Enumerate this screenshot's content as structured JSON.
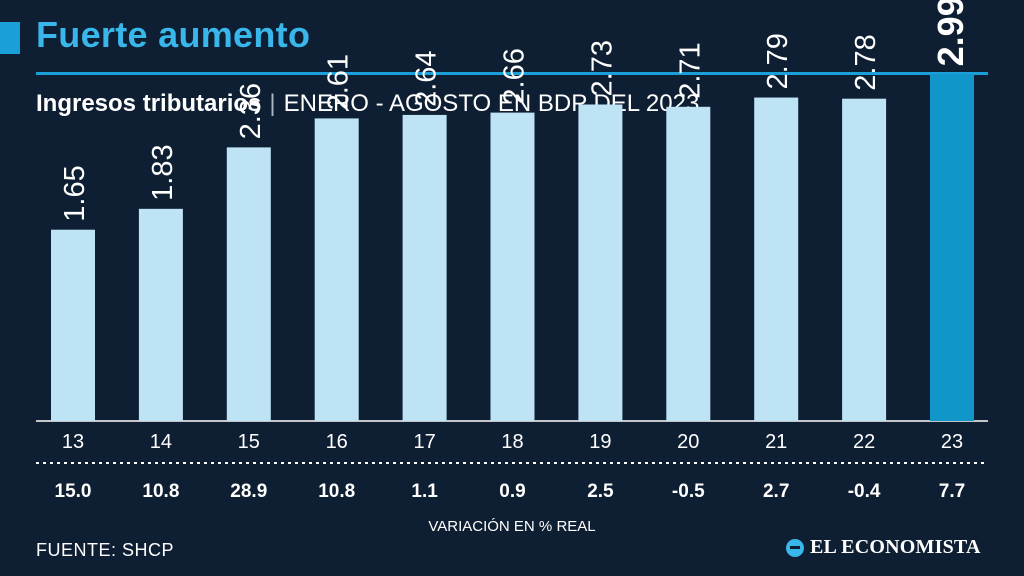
{
  "header": {
    "headline": "Fuerte aumento",
    "subtitle_bold": "Ingresos tributarios",
    "subtitle_sep": "|",
    "subtitle_rest": "ENERO - AGOSTO EN BDP DEL 2023"
  },
  "chart_data": {
    "type": "bar",
    "title": "Ingresos tributarios",
    "subtitle": "ENERO - AGOSTO EN BDP DEL 2023",
    "categories": [
      "13",
      "14",
      "15",
      "16",
      "17",
      "18",
      "19",
      "20",
      "21",
      "22",
      "23"
    ],
    "values": [
      1.65,
      1.83,
      2.36,
      2.61,
      2.64,
      2.66,
      2.73,
      2.71,
      2.79,
      2.78,
      2.99
    ],
    "value_labels": [
      "1.65",
      "1.83",
      "2.36",
      "2.61",
      "2.64",
      "2.66",
      "2.73",
      "2.71",
      "2.79",
      "2.78",
      "2.99"
    ],
    "variation": [
      "15.0",
      "10.8",
      "28.9",
      "10.8",
      "1.1",
      "0.9",
      "2.5",
      "-0.5",
      "2.7",
      "-0.4",
      "7.7"
    ],
    "variation_label": "VARIACIÓN EN % REAL",
    "highlight_index": 10,
    "colors": {
      "bar": "#bde3f5",
      "highlight": "#1196c9",
      "text": "#ffffff",
      "divider": "#ffffff"
    },
    "ylim": [
      0,
      3.2
    ],
    "grid": false,
    "xlabel": "",
    "ylabel": ""
  },
  "footer": {
    "source": "FUENTE: SHCP",
    "brand": "EL ECONOMISTA",
    "brand_icon": "el-economista-logo-icon"
  }
}
